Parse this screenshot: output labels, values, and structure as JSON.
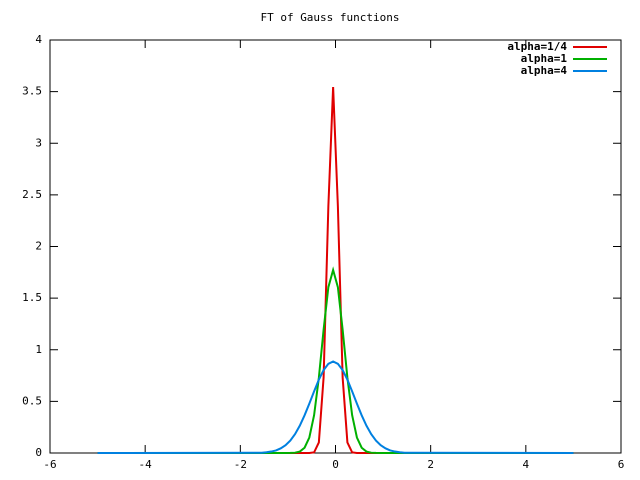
{
  "chart_data": {
    "type": "line",
    "title": "FT of Gauss functions",
    "x": [
      -5,
      -1.65,
      -1.55,
      -1.45,
      -1.35,
      -1.25,
      -1.15,
      -1.05,
      -0.95,
      -0.85,
      -0.75,
      -0.65,
      -0.55,
      -0.45,
      -0.35,
      -0.25,
      -0.15,
      -0.05,
      0.05,
      0.15,
      0.25,
      0.35,
      0.45,
      0.55,
      0.65,
      0.75,
      0.85,
      0.95,
      1.05,
      1.15,
      1.25,
      1.35,
      1.45,
      1.55,
      5
    ],
    "series": [
      {
        "name": "alpha=1/4",
        "color": "#e00000",
        "values": [
          0,
          0,
          0,
          0,
          0,
          0,
          0,
          0,
          0,
          0,
          0,
          0,
          0,
          0.006,
          0.102,
          0.731,
          2.39,
          3.545,
          2.39,
          0.731,
          0.102,
          0.006,
          0,
          0,
          0,
          0,
          0,
          0,
          0,
          0,
          0,
          0,
          0,
          0,
          0
        ]
      },
      {
        "name": "alpha=1",
        "color": "#00b000",
        "values": [
          0,
          0,
          0,
          0,
          0,
          0,
          0,
          0,
          0.001,
          0.003,
          0.014,
          0.051,
          0.15,
          0.366,
          0.729,
          1.194,
          1.606,
          1.772,
          1.606,
          1.194,
          0.729,
          0.366,
          0.15,
          0.051,
          0.014,
          0.003,
          0.001,
          0,
          0,
          0,
          0,
          0,
          0,
          0,
          0
        ]
      },
      {
        "name": "alpha=4",
        "color": "#0080e0",
        "values": [
          0,
          0.002,
          0.003,
          0.007,
          0.014,
          0.025,
          0.045,
          0.075,
          0.12,
          0.183,
          0.265,
          0.365,
          0.478,
          0.597,
          0.71,
          0.803,
          0.864,
          0.886,
          0.864,
          0.803,
          0.71,
          0.597,
          0.478,
          0.365,
          0.265,
          0.183,
          0.12,
          0.075,
          0.045,
          0.025,
          0.014,
          0.007,
          0.003,
          0.002,
          0
        ]
      }
    ],
    "xlim": [
      -6,
      6
    ],
    "xticks": [
      -6,
      -4,
      -2,
      0,
      2,
      4,
      6
    ],
    "ylim": [
      0,
      4
    ],
    "yticks": [
      0,
      0.5,
      1,
      1.5,
      2,
      2.5,
      3,
      3.5,
      4
    ],
    "legend": "top-right"
  }
}
